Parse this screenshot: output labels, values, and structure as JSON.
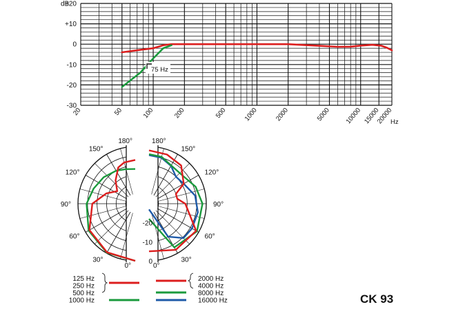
{
  "model_name": "CK 93",
  "chart_data": [
    {
      "type": "line",
      "xscale": "log",
      "xlim": [
        20,
        20000
      ],
      "ylim": [
        -30,
        20
      ],
      "xlabel": "Hz",
      "ylabel": "dB",
      "grid": true,
      "y_ticks": [
        "+20",
        "+10",
        "0",
        "-10",
        "-20",
        "-30"
      ],
      "x_ticks": [
        "20",
        "50",
        "100",
        "200",
        "500",
        "1000",
        "2000",
        "5000",
        "10000",
        "15000",
        "20000"
      ],
      "annotation": "75 Hz",
      "series": [
        {
          "color": "#dc1e1e",
          "points": [
            [
              50,
              -4
            ],
            [
              70,
              -3
            ],
            [
              100,
              -2
            ],
            [
              125,
              -0.5
            ],
            [
              150,
              0
            ],
            [
              200,
              0
            ],
            [
              500,
              0
            ],
            [
              1000,
              0
            ],
            [
              2000,
              0
            ],
            [
              4000,
              -0.8
            ],
            [
              6000,
              -1.3
            ],
            [
              8000,
              -1.2
            ],
            [
              10000,
              -0.7
            ],
            [
              13000,
              -0.3
            ],
            [
              16000,
              -0.8
            ],
            [
              18000,
              -1.8
            ],
            [
              20000,
              -3
            ]
          ]
        },
        {
          "color": "#1a9a3c",
          "points": [
            [
              50,
              -21
            ],
            [
              75,
              -14
            ],
            [
              100,
              -7
            ],
            [
              125,
              -2
            ],
            [
              150,
              -0.5
            ]
          ]
        }
      ]
    },
    {
      "type": "polar",
      "angle_labels": [
        "0°",
        "30°",
        "60°",
        "90°",
        "120°",
        "150°",
        "180°"
      ],
      "ring_labels": [
        "0",
        "-10",
        "-20"
      ],
      "rlim": [
        -30,
        0
      ],
      "left_legend_labels": [
        "125 Hz",
        "250 Hz",
        "500 Hz",
        "1000 Hz"
      ],
      "right_legend_labels": [
        "2000 Hz",
        "4000 Hz",
        "8000 Hz",
        "16000 Hz"
      ],
      "legend_colors": [
        "#dc1e1e",
        "#1a9a3c",
        "#dc1e1e",
        "#1a9a3c",
        "#1e5aa8"
      ],
      "left_series": [
        {
          "color": "#1a9a3c",
          "points": [
            [
              0,
              0
            ],
            [
              30,
              -0.3
            ],
            [
              60,
              -1.8
            ],
            [
              90,
              -4.5
            ],
            [
              110,
              -6.8
            ],
            [
              130,
              -8.4
            ],
            [
              150,
              -10
            ],
            [
              165,
              -11.2
            ],
            [
              180,
              -11.8
            ]
          ]
        },
        {
          "color": "#dc1e1e",
          "points": [
            [
              0,
              0
            ],
            [
              30,
              -0.5
            ],
            [
              60,
              -2.3
            ],
            [
              90,
              -7.5
            ],
            [
              110,
              -14
            ],
            [
              125,
              -18.5
            ],
            [
              140,
              -14
            ],
            [
              155,
              -9
            ],
            [
              165,
              -7.6
            ],
            [
              180,
              -7
            ]
          ]
        }
      ],
      "right_series": [
        {
          "color": "#1e5aa8",
          "points": [
            [
              0,
              -27
            ],
            [
              30,
              -10
            ],
            [
              45,
              -4.5
            ],
            [
              60,
              -4
            ],
            [
              80,
              -4
            ],
            [
              100,
              -5.5
            ],
            [
              120,
              -9
            ],
            [
              135,
              -10
            ],
            [
              150,
              -7
            ],
            [
              165,
              -5
            ],
            [
              180,
              -4.5
            ]
          ]
        },
        {
          "color": "#1a9a3c",
          "points": [
            [
              0,
              -22
            ],
            [
              30,
              -3.5
            ],
            [
              60,
              -1
            ],
            [
              90,
              -2
            ],
            [
              110,
              -4
            ],
            [
              130,
              -7
            ],
            [
              150,
              -6.8
            ],
            [
              165,
              -4.5
            ],
            [
              180,
              -4
            ]
          ]
        },
        {
          "color": "#dc1e1e",
          "points": [
            [
              0,
              -5
            ],
            [
              30,
              -2
            ],
            [
              60,
              -1.5
            ],
            [
              90,
              -11
            ],
            [
              100,
              -15
            ],
            [
              110,
              -15
            ],
            [
              120,
              -9
            ],
            [
              140,
              -3.8
            ],
            [
              160,
              -2.5
            ],
            [
              180,
              -2
            ]
          ]
        }
      ]
    }
  ]
}
